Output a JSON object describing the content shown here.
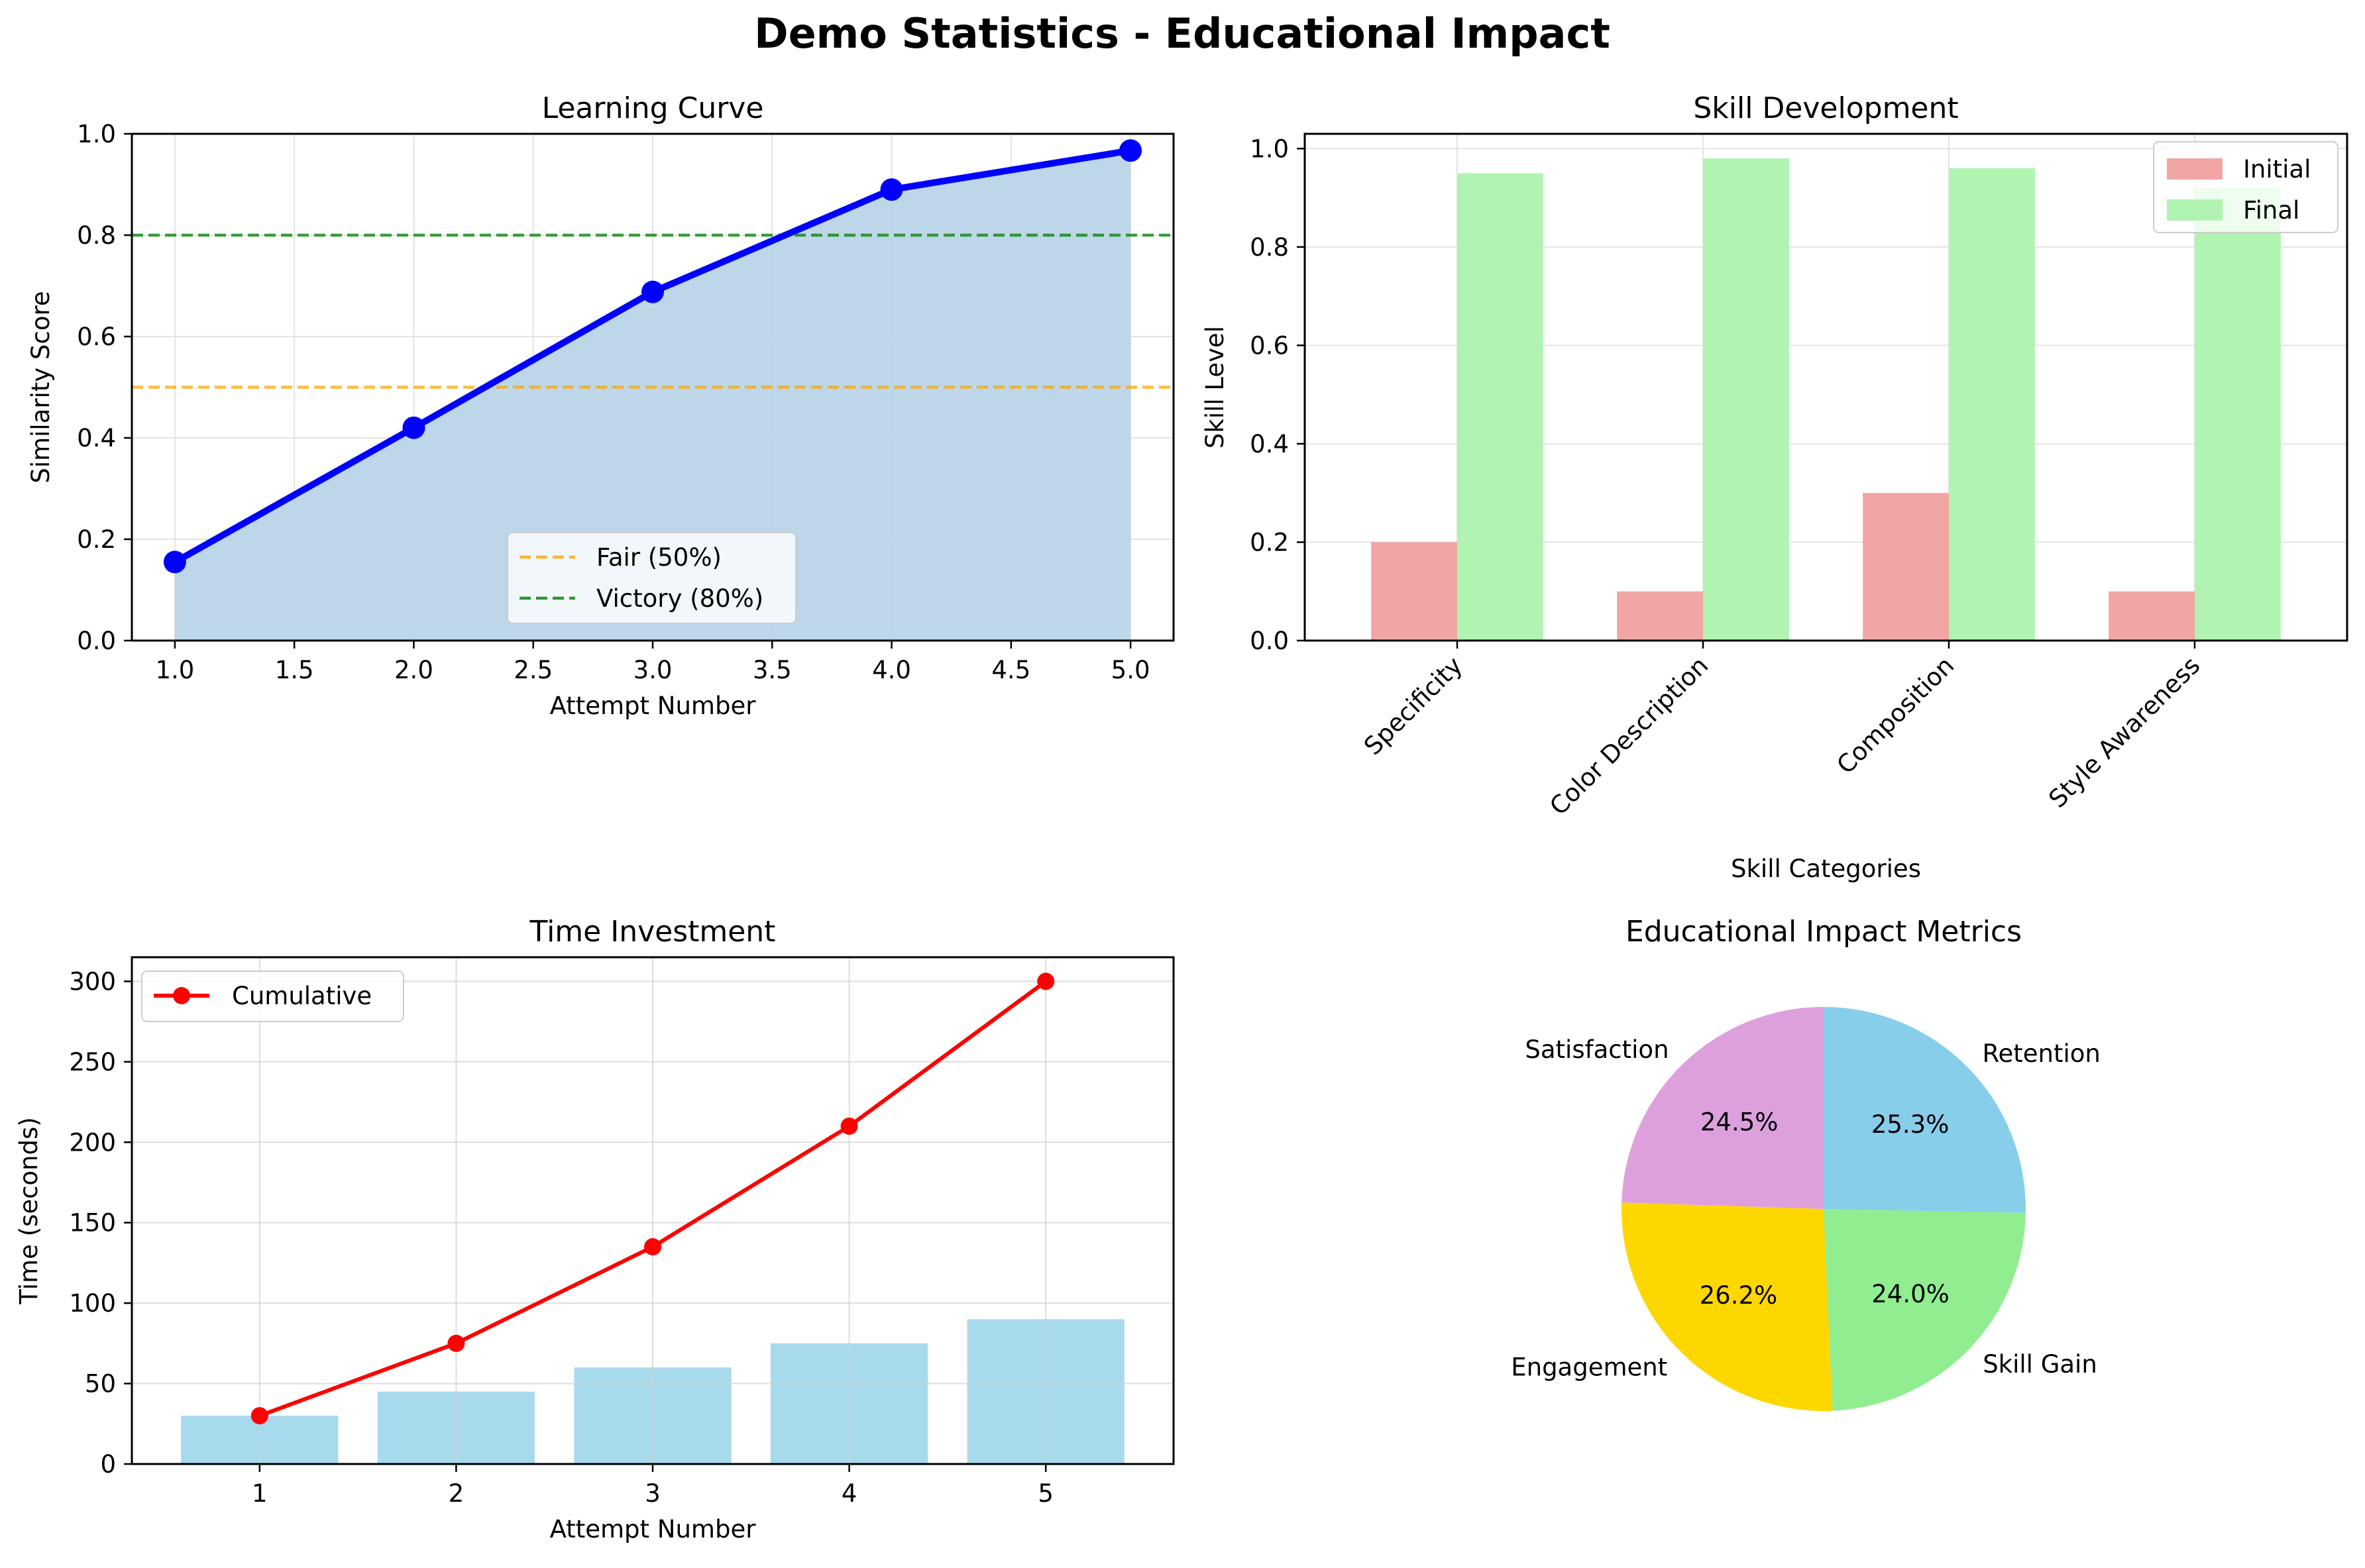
{
  "figure": {
    "title": "Demo Statistics - Educational Impact"
  },
  "chart_data": [
    {
      "type": "line",
      "title": "Learning Curve",
      "xlabel": "Attempt Number",
      "ylabel": "Similarity Score",
      "x": [
        1,
        2,
        3,
        4,
        5
      ],
      "series": [
        {
          "values": [
            0.155,
            0.42,
            0.688,
            0.89,
            0.967
          ],
          "color": "#0000ff"
        }
      ],
      "reference_lines": [
        {
          "name": "Fair (50%)",
          "y": 0.5,
          "color": "#ffa500"
        },
        {
          "name": "Victory (80%)",
          "y": 0.8,
          "color": "#008000"
        }
      ],
      "area_fill_color": "#b9d5e8",
      "xlim": [
        0.82,
        5.18
      ],
      "ylim": [
        0,
        1
      ],
      "xticks": [
        1.0,
        1.5,
        2.0,
        2.5,
        3.0,
        3.5,
        4.0,
        4.5,
        5.0
      ],
      "xtick_labels": [
        "1.0",
        "1.5",
        "2.0",
        "2.5",
        "3.0",
        "3.5",
        "4.0",
        "4.5",
        "5.0"
      ],
      "yticks": [
        0,
        0.2,
        0.4,
        0.6,
        0.8,
        1.0
      ],
      "ytick_labels": [
        "0.0",
        "0.2",
        "0.4",
        "0.6",
        "0.8",
        "1.0"
      ],
      "grid": true,
      "legend": "lower-center"
    },
    {
      "type": "bar",
      "title": "Skill Development",
      "xlabel": "Skill Categories",
      "ylabel": "Skill Level",
      "categories": [
        "Specificity",
        "Color Description",
        "Composition",
        "Style Awareness"
      ],
      "series": [
        {
          "name": "Initial",
          "values": [
            0.2,
            0.1,
            0.3,
            0.1
          ],
          "color": "#f2a5a5"
        },
        {
          "name": "Final",
          "values": [
            0.95,
            0.98,
            0.96,
            0.92
          ],
          "color": "#b1f4b1"
        }
      ],
      "ylim": [
        0,
        1.03
      ],
      "yticks": [
        0,
        0.2,
        0.4,
        0.6,
        0.8,
        1.0
      ],
      "ytick_labels": [
        "0.0",
        "0.2",
        "0.4",
        "0.6",
        "0.8",
        "1.0"
      ],
      "grid": true,
      "legend": "top-right"
    },
    {
      "type": "bar",
      "title": "Time Investment",
      "xlabel": "Attempt Number",
      "ylabel": "Time (seconds)",
      "categories": [
        "1",
        "2",
        "3",
        "4",
        "5"
      ],
      "x": [
        1,
        2,
        3,
        4,
        5
      ],
      "bar_values": [
        30,
        45,
        60,
        75,
        90
      ],
      "bar_color": "#a8daee",
      "series": [
        {
          "name": "Cumulative",
          "values": [
            30,
            75,
            135,
            210,
            300
          ],
          "color": "#ff0000"
        }
      ],
      "ylim": [
        0,
        315
      ],
      "yticks": [
        0,
        50,
        100,
        150,
        200,
        250,
        300
      ],
      "ytick_labels": [
        "0",
        "50",
        "100",
        "150",
        "200",
        "250",
        "300"
      ],
      "grid": true,
      "legend": "top-left"
    },
    {
      "type": "pie",
      "title": "Educational Impact Metrics",
      "slices": [
        {
          "label": "Satisfaction",
          "value": 24.5,
          "pct": "24.5%",
          "color": "#dda0dd"
        },
        {
          "label": "Engagement",
          "value": 26.2,
          "pct": "26.2%",
          "color": "#ffd700"
        },
        {
          "label": "Skill Gain",
          "value": 24.0,
          "pct": "24.0%",
          "color": "#90ee90"
        },
        {
          "label": "Retention",
          "value": 25.3,
          "pct": "25.3%",
          "color": "#87ceeb"
        }
      ]
    }
  ]
}
